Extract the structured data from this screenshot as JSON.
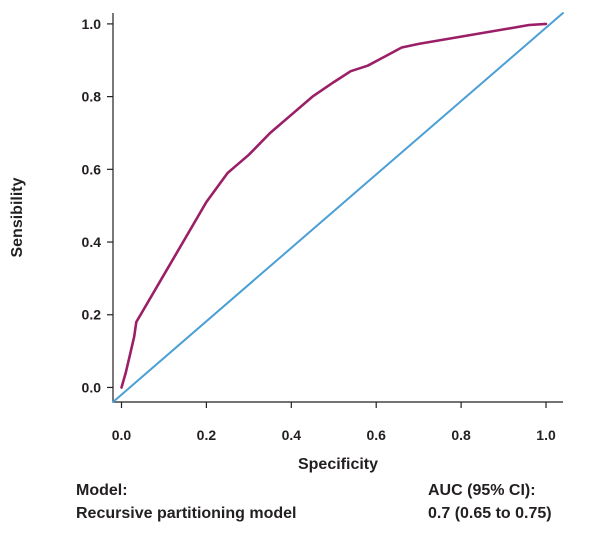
{
  "chart_data": {
    "type": "line",
    "xlabel": "Specificity",
    "ylabel": "Sensibility",
    "xlim": [
      -0.02,
      1.04
    ],
    "ylim": [
      -0.04,
      1.03
    ],
    "xticks": [
      0.0,
      0.2,
      0.4,
      0.6,
      0.8,
      1.0
    ],
    "yticks": [
      0.0,
      0.2,
      0.4,
      0.6,
      0.8,
      1.0
    ],
    "tick_labels_x": [
      "0.0",
      "0.2",
      "0.4",
      "0.6",
      "0.8",
      "1.0"
    ],
    "tick_labels_y": [
      "0.0",
      "0.2",
      "0.4",
      "0.6",
      "0.8",
      "1.0"
    ],
    "grid": false,
    "series": [
      {
        "color": "#9b1f66",
        "x": [
          0.0,
          0.01,
          0.02,
          0.03,
          0.035,
          0.05,
          0.1,
          0.15,
          0.2,
          0.25,
          0.27,
          0.3,
          0.35,
          0.4,
          0.45,
          0.5,
          0.54,
          0.58,
          0.62,
          0.66,
          0.7,
          0.8,
          0.9,
          0.96,
          1.0
        ],
        "y": [
          0.0,
          0.04,
          0.09,
          0.14,
          0.18,
          0.21,
          0.31,
          0.41,
          0.51,
          0.59,
          0.61,
          0.64,
          0.7,
          0.75,
          0.8,
          0.84,
          0.87,
          0.885,
          0.91,
          0.935,
          0.945,
          0.965,
          0.985,
          0.997,
          1.0
        ]
      },
      {
        "color": "#4a9fd6",
        "x": [
          -0.02,
          1.04
        ],
        "y": [
          -0.04,
          1.03
        ]
      }
    ]
  },
  "legend": {
    "model_header": "Model:",
    "model_name": "Recursive partitioning model",
    "auc_header": "AUC (95% CI):",
    "auc_value": "0.7 (0.65 to 0.75)"
  }
}
